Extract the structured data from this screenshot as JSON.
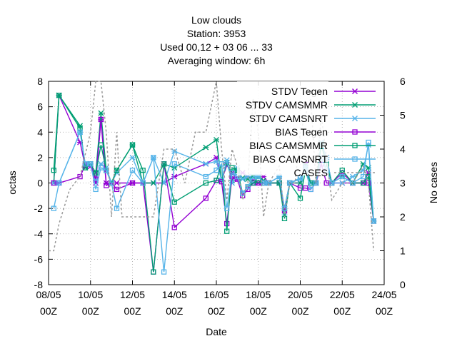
{
  "chart_data": {
    "type": "line",
    "title_lines": [
      "Low clouds",
      "Station:      3953",
      "Used  00,12  + 03 06 ... 33",
      "Averaging window:  6h"
    ],
    "xlabel": "Date",
    "ylabel": "octas",
    "y2label": "No cases",
    "xlim": [
      0,
      16
    ],
    "xunit_note_days_from_0805": true,
    "ylim": [
      -8,
      8
    ],
    "y2lim": [
      0,
      6
    ],
    "xticks": [
      {
        "x": 0,
        "label1": "08/05",
        "label2": "00Z"
      },
      {
        "x": 2,
        "label1": "10/05",
        "label2": "00Z"
      },
      {
        "x": 4,
        "label1": "12/05",
        "label2": "00Z"
      },
      {
        "x": 6,
        "label1": "14/05",
        "label2": "00Z"
      },
      {
        "x": 8,
        "label1": "16/05",
        "label2": "00Z"
      },
      {
        "x": 10,
        "label1": "18/05",
        "label2": "00Z"
      },
      {
        "x": 12,
        "label1": "20/05",
        "label2": "00Z"
      },
      {
        "x": 14,
        "label1": "22/05",
        "label2": "00Z"
      },
      {
        "x": 16,
        "label1": "24/05",
        "label2": "00Z"
      }
    ],
    "yticks": [
      "-8",
      "-6",
      "-4",
      "-2",
      "0",
      "2",
      "4",
      "6",
      "8"
    ],
    "y2ticks": [
      "0",
      "1",
      "2",
      "3",
      "4",
      "5",
      "6"
    ],
    "grid": true,
    "legend_position": "top-right",
    "series": [
      {
        "name": "STDV Tegen",
        "color": "#9400d3",
        "marker": "x",
        "axis": "y1",
        "points": [
          [
            0.25,
            0
          ],
          [
            0.5,
            6.9
          ],
          [
            1.5,
            3.2
          ],
          [
            1.75,
            1.3
          ],
          [
            2.0,
            1.3
          ],
          [
            2.25,
            0
          ],
          [
            2.5,
            5.0
          ],
          [
            2.75,
            0
          ],
          [
            3.0,
            0
          ],
          [
            3.25,
            0
          ],
          [
            4.0,
            0
          ],
          [
            4.5,
            0
          ],
          [
            5.0,
            0
          ],
          [
            5.5,
            0
          ],
          [
            6.0,
            0.5
          ],
          [
            7.5,
            1.5
          ],
          [
            8.0,
            2.0
          ],
          [
            8.25,
            0.2
          ],
          [
            8.5,
            1.4
          ],
          [
            8.75,
            0.8
          ],
          [
            9.0,
            0.3
          ],
          [
            9.25,
            0.8
          ],
          [
            9.5,
            0.5
          ],
          [
            9.75,
            0.2
          ],
          [
            10.0,
            0
          ],
          [
            10.25,
            0.5
          ],
          [
            10.5,
            0
          ],
          [
            11.0,
            0
          ],
          [
            11.25,
            -2.0
          ],
          [
            11.5,
            0
          ],
          [
            12.0,
            0
          ],
          [
            12.25,
            1.5
          ],
          [
            12.5,
            0
          ],
          [
            12.75,
            0
          ],
          [
            13.0,
            3.0
          ],
          [
            13.25,
            2.0
          ],
          [
            13.5,
            0
          ],
          [
            14.0,
            0
          ],
          [
            14.5,
            0
          ],
          [
            15.0,
            0
          ],
          [
            15.25,
            0.8
          ],
          [
            15.5,
            -3.0
          ]
        ]
      },
      {
        "name": "STDV CAMSMMR",
        "color": "#009e73",
        "marker": "x",
        "axis": "y1",
        "points": [
          [
            0.25,
            0
          ],
          [
            0.5,
            6.9
          ],
          [
            1.5,
            4.5
          ],
          [
            1.75,
            1.2
          ],
          [
            2.0,
            1.5
          ],
          [
            2.25,
            0.8
          ],
          [
            2.5,
            5.5
          ],
          [
            2.75,
            1.0
          ],
          [
            3.0,
            0
          ],
          [
            3.25,
            1.0
          ],
          [
            4.0,
            3.0
          ],
          [
            4.5,
            0
          ],
          [
            5.0,
            0
          ],
          [
            5.5,
            1.5
          ],
          [
            6.0,
            1.2
          ],
          [
            7.5,
            2.8
          ],
          [
            8.0,
            3.4
          ],
          [
            8.25,
            0.2
          ],
          [
            8.5,
            1.6
          ],
          [
            8.75,
            0.2
          ],
          [
            9.0,
            1.0
          ],
          [
            9.25,
            0.4
          ],
          [
            9.5,
            0.3
          ],
          [
            9.75,
            0.5
          ],
          [
            10.0,
            0.5
          ],
          [
            10.25,
            0.2
          ],
          [
            10.5,
            0
          ],
          [
            11.0,
            0
          ],
          [
            11.25,
            -2.0
          ],
          [
            11.5,
            0
          ],
          [
            12.0,
            0
          ],
          [
            12.25,
            1.4
          ],
          [
            12.5,
            0
          ],
          [
            12.75,
            0
          ],
          [
            13.0,
            3.1
          ],
          [
            13.25,
            2.0
          ],
          [
            13.5,
            0
          ],
          [
            14.0,
            0.5
          ],
          [
            14.5,
            0
          ],
          [
            15.0,
            1.5
          ],
          [
            15.25,
            1.2
          ],
          [
            15.5,
            -3.0
          ]
        ]
      },
      {
        "name": "STDV CAMSNRT",
        "color": "#56b4e9",
        "marker": "x",
        "axis": "y1",
        "points": [
          [
            0.25,
            0
          ],
          [
            0.5,
            0
          ],
          [
            1.5,
            4.0
          ],
          [
            1.75,
            1.5
          ],
          [
            2.0,
            1.5
          ],
          [
            2.25,
            0.2
          ],
          [
            2.5,
            1.5
          ],
          [
            2.75,
            1.2
          ],
          [
            3.0,
            0
          ],
          [
            3.25,
            0.8
          ],
          [
            4.0,
            2.0
          ],
          [
            4.5,
            0
          ],
          [
            5.0,
            2.0
          ],
          [
            5.5,
            0
          ],
          [
            6.0,
            2.5
          ],
          [
            7.5,
            1.5
          ],
          [
            8.0,
            1.7
          ],
          [
            8.25,
            0.2
          ],
          [
            8.5,
            1.8
          ],
          [
            8.75,
            0
          ],
          [
            9.0,
            1.2
          ],
          [
            9.25,
            0.3
          ],
          [
            9.5,
            0.5
          ],
          [
            9.75,
            0
          ],
          [
            10.0,
            0.5
          ],
          [
            10.25,
            0
          ],
          [
            10.5,
            0
          ],
          [
            11.0,
            0.5
          ],
          [
            11.25,
            -2.5
          ],
          [
            11.5,
            0
          ],
          [
            12.0,
            0.3
          ],
          [
            12.25,
            1.3
          ],
          [
            12.5,
            0
          ],
          [
            12.75,
            0
          ],
          [
            13.0,
            3.2
          ],
          [
            13.25,
            2.0
          ],
          [
            13.5,
            0
          ],
          [
            14.0,
            0
          ],
          [
            14.5,
            0.5
          ],
          [
            15.0,
            1.0
          ],
          [
            15.25,
            3.0
          ],
          [
            15.5,
            -3.0
          ]
        ]
      },
      {
        "name": "BIAS Tegen",
        "color": "#9400d3",
        "marker": "square",
        "axis": "y1",
        "points": [
          [
            0.25,
            0
          ],
          [
            0.5,
            0
          ],
          [
            1.5,
            0.5
          ],
          [
            1.75,
            1.4
          ],
          [
            2.0,
            1.5
          ],
          [
            2.25,
            0.3
          ],
          [
            2.5,
            5.0
          ],
          [
            2.75,
            -0.2
          ],
          [
            3.0,
            0
          ],
          [
            3.25,
            -0.5
          ],
          [
            4.0,
            0
          ],
          [
            4.5,
            0
          ],
          [
            5.0,
            -7.0
          ],
          [
            5.5,
            1.5
          ],
          [
            6.0,
            -3.5
          ],
          [
            7.5,
            -1.2
          ],
          [
            8.0,
            0.2
          ],
          [
            8.25,
            0.1
          ],
          [
            8.5,
            -3.2
          ],
          [
            8.75,
            0.5
          ],
          [
            9.0,
            0.3
          ],
          [
            9.25,
            -1.0
          ],
          [
            9.5,
            -0.5
          ],
          [
            9.75,
            0
          ],
          [
            10.0,
            0
          ],
          [
            10.25,
            0
          ],
          [
            10.5,
            0
          ],
          [
            11.0,
            0
          ],
          [
            11.25,
            -2.2
          ],
          [
            11.5,
            0
          ],
          [
            12.0,
            -0.4
          ],
          [
            12.25,
            -0.4
          ],
          [
            12.5,
            -0.5
          ],
          [
            12.75,
            0
          ],
          [
            13.0,
            1.5
          ],
          [
            13.25,
            0
          ],
          [
            13.5,
            0
          ],
          [
            14.0,
            0.8
          ],
          [
            14.5,
            0
          ],
          [
            15.0,
            0
          ],
          [
            15.25,
            0
          ],
          [
            15.5,
            -3.0
          ]
        ]
      },
      {
        "name": "BIAS CAMSMMR",
        "color": "#009e73",
        "marker": "square",
        "axis": "y1",
        "points": [
          [
            0.25,
            1.0
          ],
          [
            0.5,
            6.9
          ],
          [
            1.5,
            4.3
          ],
          [
            1.75,
            1.2
          ],
          [
            2.0,
            1.5
          ],
          [
            2.25,
            0.8
          ],
          [
            2.5,
            3.0
          ],
          [
            2.75,
            1.0
          ],
          [
            3.0,
            0
          ],
          [
            3.25,
            1.0
          ],
          [
            4.0,
            3.0
          ],
          [
            4.5,
            1.0
          ],
          [
            5.0,
            -7.0
          ],
          [
            5.5,
            1.5
          ],
          [
            6.0,
            -1.5
          ],
          [
            7.5,
            0
          ],
          [
            8.0,
            0.2
          ],
          [
            8.25,
            1.5
          ],
          [
            8.5,
            -3.8
          ],
          [
            8.75,
            1.2
          ],
          [
            9.0,
            1.0
          ],
          [
            9.25,
            -0.8
          ],
          [
            9.5,
            -0.3
          ],
          [
            9.75,
            0
          ],
          [
            10.0,
            0.2
          ],
          [
            10.25,
            0
          ],
          [
            10.5,
            0
          ],
          [
            11.0,
            0
          ],
          [
            11.25,
            -2.8
          ],
          [
            11.5,
            0
          ],
          [
            12.0,
            -1.2
          ],
          [
            12.25,
            1.0
          ],
          [
            12.5,
            0
          ],
          [
            12.75,
            0
          ],
          [
            13.0,
            3.0
          ],
          [
            13.25,
            1.5
          ],
          [
            13.5,
            0
          ],
          [
            14.0,
            1.0
          ],
          [
            14.5,
            0
          ],
          [
            15.0,
            0
          ],
          [
            15.25,
            0.5
          ],
          [
            15.5,
            -3.0
          ]
        ]
      },
      {
        "name": "BIAS CAMSNRT",
        "color": "#56b4e9",
        "marker": "square",
        "axis": "y1",
        "points": [
          [
            0.25,
            -2.0
          ],
          [
            0.5,
            0
          ],
          [
            1.5,
            4.0
          ],
          [
            1.75,
            1.5
          ],
          [
            2.0,
            1.5
          ],
          [
            2.25,
            -0.5
          ],
          [
            2.5,
            1.2
          ],
          [
            2.75,
            1.0
          ],
          [
            3.0,
            0
          ],
          [
            3.25,
            -2.0
          ],
          [
            4.0,
            1.0
          ],
          [
            4.5,
            0
          ],
          [
            5.0,
            2.0
          ],
          [
            5.5,
            -7.0
          ],
          [
            6.0,
            1.5
          ],
          [
            7.5,
            0.5
          ],
          [
            8.0,
            1.0
          ],
          [
            8.25,
            1.5
          ],
          [
            8.5,
            -2.0
          ],
          [
            8.75,
            0.8
          ],
          [
            9.0,
            0.5
          ],
          [
            9.25,
            -0.8
          ],
          [
            9.5,
            -0.3
          ],
          [
            9.75,
            0.5
          ],
          [
            10.0,
            0.5
          ],
          [
            10.25,
            0
          ],
          [
            10.5,
            0
          ],
          [
            11.0,
            0.5
          ],
          [
            11.25,
            -2.0
          ],
          [
            11.5,
            0
          ],
          [
            12.0,
            0.4
          ],
          [
            12.25,
            1.0
          ],
          [
            12.5,
            -0.5
          ],
          [
            12.75,
            0
          ],
          [
            13.0,
            2.0
          ],
          [
            13.25,
            1.0
          ],
          [
            13.5,
            0
          ],
          [
            14.0,
            0.5
          ],
          [
            14.5,
            0
          ],
          [
            15.0,
            0.5
          ],
          [
            15.25,
            3.2
          ],
          [
            15.5,
            -3.0
          ]
        ]
      },
      {
        "name": "CASES",
        "color": "#999999",
        "marker": "none",
        "dashed": true,
        "axis": "y2",
        "points": [
          [
            0.0,
            1.0
          ],
          [
            0.25,
            1.0
          ],
          [
            0.5,
            1.8
          ],
          [
            1.0,
            2.8
          ],
          [
            1.5,
            3.2
          ],
          [
            2.0,
            4.5
          ],
          [
            2.25,
            6.0
          ],
          [
            2.5,
            6.0
          ],
          [
            2.75,
            4.5
          ],
          [
            3.0,
            2.0
          ],
          [
            3.25,
            4.5
          ],
          [
            3.5,
            2.0
          ],
          [
            4.0,
            2.0
          ],
          [
            4.5,
            2.0
          ],
          [
            5.0,
            2.0
          ],
          [
            5.5,
            4.0
          ],
          [
            6.0,
            4.0
          ],
          [
            6.5,
            3.0
          ],
          [
            7.0,
            4.5
          ],
          [
            7.5,
            4.5
          ],
          [
            8.0,
            6.0
          ],
          [
            8.25,
            4.0
          ],
          [
            8.5,
            2.5
          ],
          [
            8.75,
            4.0
          ],
          [
            9.0,
            3.5
          ],
          [
            9.25,
            2.5
          ],
          [
            9.5,
            3.0
          ],
          [
            9.75,
            5.5
          ],
          [
            10.0,
            4.5
          ],
          [
            10.25,
            2.0
          ],
          [
            10.5,
            3.0
          ],
          [
            11.0,
            3.5
          ],
          [
            11.25,
            2.0
          ],
          [
            11.5,
            3.0
          ],
          [
            11.75,
            3.0
          ],
          [
            12.0,
            4.5
          ],
          [
            12.5,
            5.5
          ],
          [
            12.75,
            3.0
          ],
          [
            13.0,
            5.0
          ],
          [
            13.5,
            2.5
          ],
          [
            14.0,
            3.0
          ],
          [
            14.5,
            3.0
          ],
          [
            15.0,
            3.5
          ],
          [
            15.25,
            3.0
          ],
          [
            15.5,
            1.0
          ]
        ]
      }
    ]
  }
}
